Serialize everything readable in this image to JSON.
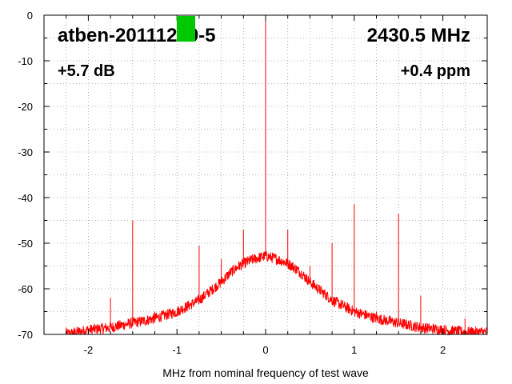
{
  "chart_data": {
    "type": "line",
    "title": "",
    "xlabel": "MHz from nominal frequency of test wave",
    "ylabel": "",
    "xlim": [
      -2.5,
      2.5
    ],
    "ylim": [
      -70,
      0
    ],
    "x_ticks": [
      -2,
      -1,
      0,
      1,
      2
    ],
    "y_ticks": [
      0,
      -10,
      -20,
      -30,
      -40,
      -50,
      -60,
      -70
    ],
    "x_tick_labels": [
      "-2",
      "-1",
      "0",
      "1",
      "2"
    ],
    "y_tick_labels": [
      "0",
      "-10",
      "-20",
      "-30",
      "-40",
      "-50",
      "-60",
      "-70"
    ],
    "grid": true,
    "annotations": {
      "device": "atben-20111219-5",
      "frequency": "2430.5 MHz",
      "gain": "+5.7 dB",
      "offset": "+0.4 ppm"
    },
    "marker_color": "#00c800",
    "series": [
      {
        "color": "#ff0000",
        "noise_floor": {
          "x": [
            -2.25,
            -2.0,
            -1.75,
            -1.5,
            -1.25,
            -1.0,
            -0.75,
            -0.5,
            -0.4,
            -0.3,
            -0.2,
            -0.1,
            0.0,
            0.1,
            0.2,
            0.3,
            0.4,
            0.5,
            0.75,
            1.0,
            1.25,
            1.5,
            1.75,
            2.0,
            2.25,
            2.5
          ],
          "y": [
            -70,
            -69,
            -68.5,
            -67.5,
            -66.5,
            -65,
            -62.5,
            -58.5,
            -56.5,
            -55,
            -54,
            -53.3,
            -52.8,
            -53.3,
            -54,
            -55,
            -56.5,
            -58.5,
            -62.5,
            -65,
            -66.5,
            -67.5,
            -68.5,
            -69,
            -69.5,
            -69.5
          ]
        },
        "spurs": [
          {
            "x": -2.25,
            "y": -68.5
          },
          {
            "x": -1.75,
            "y": -62
          },
          {
            "x": -1.5,
            "y": -45
          },
          {
            "x": -1.25,
            "y": -65
          },
          {
            "x": -0.75,
            "y": -50.5
          },
          {
            "x": -0.5,
            "y": -53.5
          },
          {
            "x": -0.25,
            "y": -47
          },
          {
            "x": 0.0,
            "y": 0
          },
          {
            "x": 0.0,
            "y": -44
          },
          {
            "x": 0.25,
            "y": -47
          },
          {
            "x": 0.5,
            "y": -55
          },
          {
            "x": 0.75,
            "y": -50
          },
          {
            "x": 1.0,
            "y": -41.5
          },
          {
            "x": 1.25,
            "y": -65
          },
          {
            "x": 1.5,
            "y": -43.5
          },
          {
            "x": 1.75,
            "y": -61.5
          },
          {
            "x": 2.25,
            "y": -66.5
          }
        ]
      }
    ]
  }
}
